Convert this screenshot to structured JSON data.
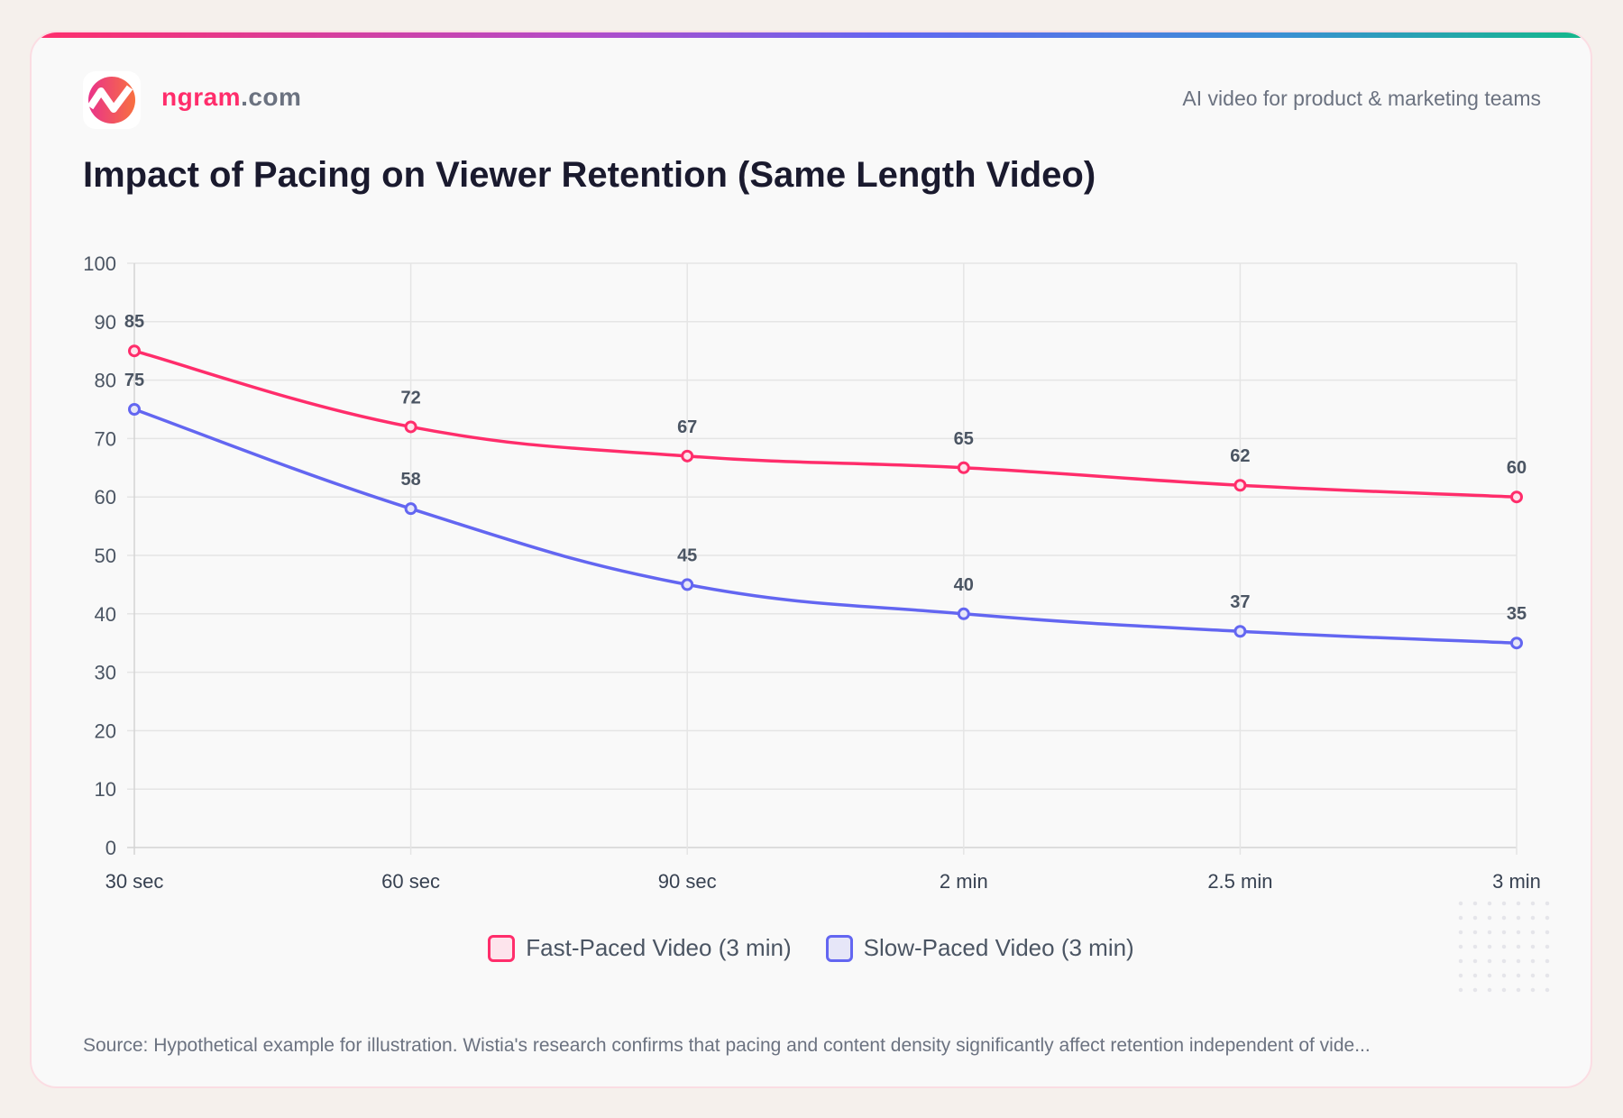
{
  "header": {
    "brand_main": "ngram",
    "brand_suffix": ".com",
    "tagline": "AI video for product & marketing teams"
  },
  "chart_data": {
    "type": "line",
    "title": "Impact of Pacing on Viewer Retention (Same Length Video)",
    "categories": [
      "30 sec",
      "60 sec",
      "90 sec",
      "2 min",
      "2.5 min",
      "3 min"
    ],
    "ylim": [
      0,
      100
    ],
    "yticks": [
      0,
      10,
      20,
      30,
      40,
      50,
      60,
      70,
      80,
      90,
      100
    ],
    "grid": true,
    "legend": "bottom",
    "series": [
      {
        "name": "Fast-Paced Video (3 min)",
        "values": [
          85,
          72,
          67,
          65,
          62,
          60
        ],
        "color": "#ff2d6b",
        "fill": "#fde4ec"
      },
      {
        "name": "Slow-Paced Video (3 min)",
        "values": [
          75,
          58,
          45,
          40,
          37,
          35
        ],
        "color": "#6366f1",
        "fill": "#e6e6f8"
      }
    ]
  },
  "footer": {
    "source": "Source: Hypothetical example for illustration. Wistia's research confirms that pacing and content density significantly affect retention independent of vide..."
  }
}
